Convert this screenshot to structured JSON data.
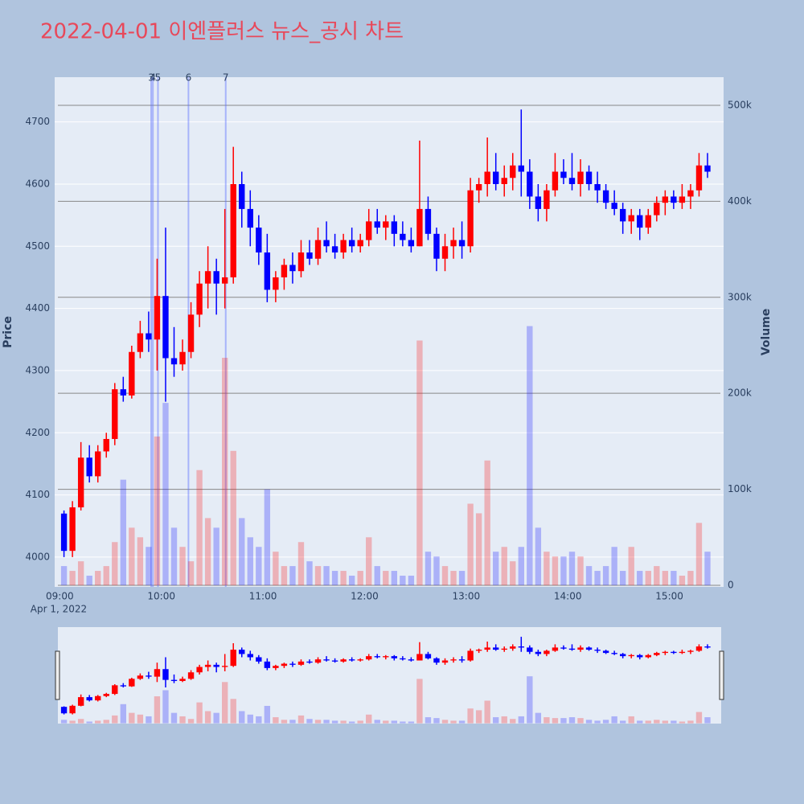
{
  "chart_data": {
    "type": "candlestick",
    "title": "2022-04-01 이엔플러스 뉴스_공시 차트",
    "y_label": "Price",
    "y2_label": "Volume",
    "x_date_label": "Apr 1, 2022",
    "increasing_color": "#ff0000",
    "decreasing_color": "#0000ff",
    "x": [
      "09:00",
      "09:05",
      "09:10",
      "09:15",
      "09:20",
      "09:25",
      "09:30",
      "09:35",
      "09:40",
      "09:45",
      "09:50",
      "09:55",
      "10:00",
      "10:05",
      "10:10",
      "10:15",
      "10:20",
      "10:25",
      "10:30",
      "10:35",
      "10:40",
      "10:45",
      "10:50",
      "10:55",
      "11:00",
      "11:05",
      "11:10",
      "11:15",
      "11:20",
      "11:25",
      "11:30",
      "11:35",
      "11:40",
      "11:45",
      "11:50",
      "11:55",
      "12:00",
      "12:05",
      "12:10",
      "12:15",
      "12:20",
      "12:25",
      "12:30",
      "12:35",
      "12:40",
      "12:45",
      "12:50",
      "12:55",
      "13:00",
      "13:05",
      "13:10",
      "13:15",
      "13:20",
      "13:25",
      "13:30",
      "13:35",
      "13:40",
      "13:45",
      "13:50",
      "13:55",
      "14:00",
      "14:05",
      "14:10",
      "14:15",
      "14:20",
      "14:25",
      "14:30",
      "14:35",
      "14:40",
      "14:45",
      "14:50",
      "14:55",
      "15:00",
      "15:05",
      "15:10",
      "15:15",
      "15:20"
    ],
    "open": [
      4070,
      4010,
      4080,
      4160,
      4130,
      4170,
      4190,
      4270,
      4260,
      4330,
      4360,
      4350,
      4420,
      4320,
      4310,
      4330,
      4390,
      4440,
      4460,
      4440,
      4450,
      4600,
      4560,
      4530,
      4490,
      4430,
      4450,
      4470,
      4460,
      4490,
      4480,
      4510,
      4500,
      4490,
      4510,
      4500,
      4510,
      4540,
      4530,
      4540,
      4520,
      4510,
      4500,
      4560,
      4520,
      4480,
      4500,
      4510,
      4500,
      4590,
      4600,
      4620,
      4600,
      4610,
      4630,
      4620,
      4580,
      4560,
      4590,
      4620,
      4610,
      4600,
      4620,
      4600,
      4590,
      4570,
      4560,
      4540,
      4550,
      4530,
      4550,
      4570,
      4580,
      4570,
      4580,
      4590,
      4630
    ],
    "high": [
      4075,
      4090,
      4185,
      4180,
      4180,
      4200,
      4280,
      4290,
      4340,
      4380,
      4395,
      4480,
      4530,
      4370,
      4350,
      4410,
      4460,
      4500,
      4480,
      4560,
      4660,
      4620,
      4590,
      4550,
      4520,
      4460,
      4480,
      4490,
      4510,
      4510,
      4530,
      4540,
      4520,
      4520,
      4530,
      4520,
      4560,
      4560,
      4550,
      4550,
      4540,
      4530,
      4670,
      4580,
      4530,
      4520,
      4530,
      4540,
      4610,
      4610,
      4675,
      4650,
      4630,
      4650,
      4720,
      4640,
      4600,
      4600,
      4650,
      4640,
      4650,
      4640,
      4630,
      4620,
      4600,
      4590,
      4570,
      4560,
      4560,
      4560,
      4580,
      4590,
      4590,
      4600,
      4600,
      4650,
      4650
    ],
    "low": [
      4000,
      4000,
      4075,
      4120,
      4120,
      4160,
      4180,
      4250,
      4255,
      4320,
      4330,
      4300,
      4250,
      4290,
      4300,
      4320,
      4370,
      4400,
      4390,
      4400,
      4440,
      4530,
      4500,
      4470,
      4410,
      4410,
      4430,
      4440,
      4450,
      4470,
      4470,
      4490,
      4480,
      4480,
      4490,
      4490,
      4500,
      4520,
      4510,
      4500,
      4500,
      4490,
      4500,
      4510,
      4460,
      4460,
      4480,
      4480,
      4490,
      4570,
      4580,
      4590,
      4580,
      4590,
      4580,
      4560,
      4540,
      4540,
      4580,
      4600,
      4590,
      4580,
      4590,
      4570,
      4560,
      4550,
      4520,
      4520,
      4510,
      4520,
      4540,
      4550,
      4560,
      4560,
      4560,
      4580,
      4610
    ],
    "close": [
      4010,
      4080,
      4160,
      4130,
      4170,
      4190,
      4270,
      4260,
      4330,
      4360,
      4350,
      4420,
      4320,
      4310,
      4330,
      4390,
      4440,
      4460,
      4440,
      4450,
      4600,
      4560,
      4530,
      4490,
      4430,
      4450,
      4470,
      4460,
      4490,
      4480,
      4510,
      4500,
      4490,
      4510,
      4500,
      4510,
      4540,
      4530,
      4540,
      4520,
      4510,
      4500,
      4560,
      4520,
      4480,
      4500,
      4510,
      4500,
      4590,
      4600,
      4620,
      4600,
      4610,
      4630,
      4620,
      4580,
      4560,
      4590,
      4620,
      4610,
      4600,
      4620,
      4600,
      4590,
      4570,
      4560,
      4540,
      4550,
      4530,
      4550,
      4570,
      4580,
      4570,
      4580,
      4590,
      4630,
      4620
    ],
    "volume": [
      20000,
      15000,
      25000,
      10000,
      15000,
      20000,
      45000,
      110000,
      60000,
      50000,
      40000,
      155000,
      190000,
      60000,
      40000,
      25000,
      120000,
      70000,
      60000,
      237000,
      140000,
      70000,
      50000,
      40000,
      100000,
      35000,
      20000,
      20000,
      45000,
      25000,
      20000,
      20000,
      15000,
      15000,
      10000,
      15000,
      50000,
      20000,
      15000,
      15000,
      10000,
      10000,
      255000,
      35000,
      30000,
      20000,
      15000,
      15000,
      85000,
      75000,
      130000,
      35000,
      40000,
      25000,
      40000,
      270000,
      60000,
      35000,
      30000,
      30000,
      35000,
      30000,
      20000,
      15000,
      20000,
      40000,
      15000,
      40000,
      15000,
      15000,
      20000,
      15000,
      15000,
      10000,
      15000,
      65000,
      35000
    ],
    "xlim": [
      "08:57",
      "15:32"
    ],
    "xticks": [
      "09:00",
      "10:00",
      "11:00",
      "12:00",
      "13:00",
      "14:00",
      "15:00"
    ],
    "ylim": [
      3952,
      4772
    ],
    "yticks": [
      4000,
      4100,
      4200,
      4300,
      4400,
      4500,
      4600,
      4700
    ],
    "y2lim": [
      -1700,
      529300
    ],
    "y2ticks": [
      0,
      {
        "value": 100000,
        "label": "100k"
      },
      {
        "value": 200000,
        "label": "200k"
      },
      {
        "value": 300000,
        "label": "300k"
      },
      {
        "value": 400000,
        "label": "400k"
      },
      {
        "value": 500000,
        "label": "500k"
      }
    ],
    "grid": true,
    "annotations": [
      {
        "text": "3",
        "x": "09:54"
      },
      {
        "text": "4",
        "x": "09:55"
      },
      {
        "text": "5",
        "x": "09:58"
      },
      {
        "text": "6",
        "x": "10:16"
      },
      {
        "text": "7",
        "x": "10:38"
      }
    ],
    "rangeslider": true
  }
}
